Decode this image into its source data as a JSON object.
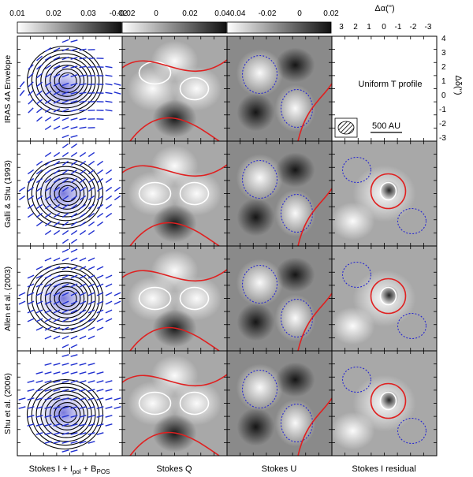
{
  "figure": {
    "colorbars": [
      {
        "ticks": [
          "0.01",
          "0.02",
          "0.03",
          "-0.02"
        ]
      },
      {
        "ticks": [
          "-0.02",
          "0",
          "0.02",
          "0.04"
        ]
      },
      {
        "ticks": [
          "-0.04",
          "-0.02",
          "0",
          "0.02"
        ]
      }
    ],
    "ra_axis": {
      "title": "Δα('')",
      "ticks": [
        "3",
        "2",
        "1",
        "0",
        "-1",
        "-2",
        "-3"
      ]
    },
    "dec_axis": {
      "title": "Δδ('')",
      "ticks": [
        "4",
        "3",
        "2",
        "1",
        "0",
        "-1",
        "-2",
        "-3"
      ]
    },
    "row_labels": [
      "IRAS 4A Envelope",
      "Galli & Shu (1993)",
      "Allen et al. (2003)",
      "Shu et al. (2006)"
    ],
    "column_labels": [
      "Stokes I + I",
      "Stokes Q",
      "Stokes U",
      "Stokes I residual"
    ],
    "column_label_parts": {
      "pol_sub": "pol",
      "plus": " + B",
      "pos_sub": "POS"
    },
    "empty_panel_text": "Uniform T profile",
    "scale_bar_label": "500 AU",
    "colors": {
      "positive_contour": "#e02020",
      "negative_contour": "#2a2ad0",
      "white_contour": "#ffffff",
      "vector": "#2030d0",
      "black_contour": "#000000"
    }
  }
}
